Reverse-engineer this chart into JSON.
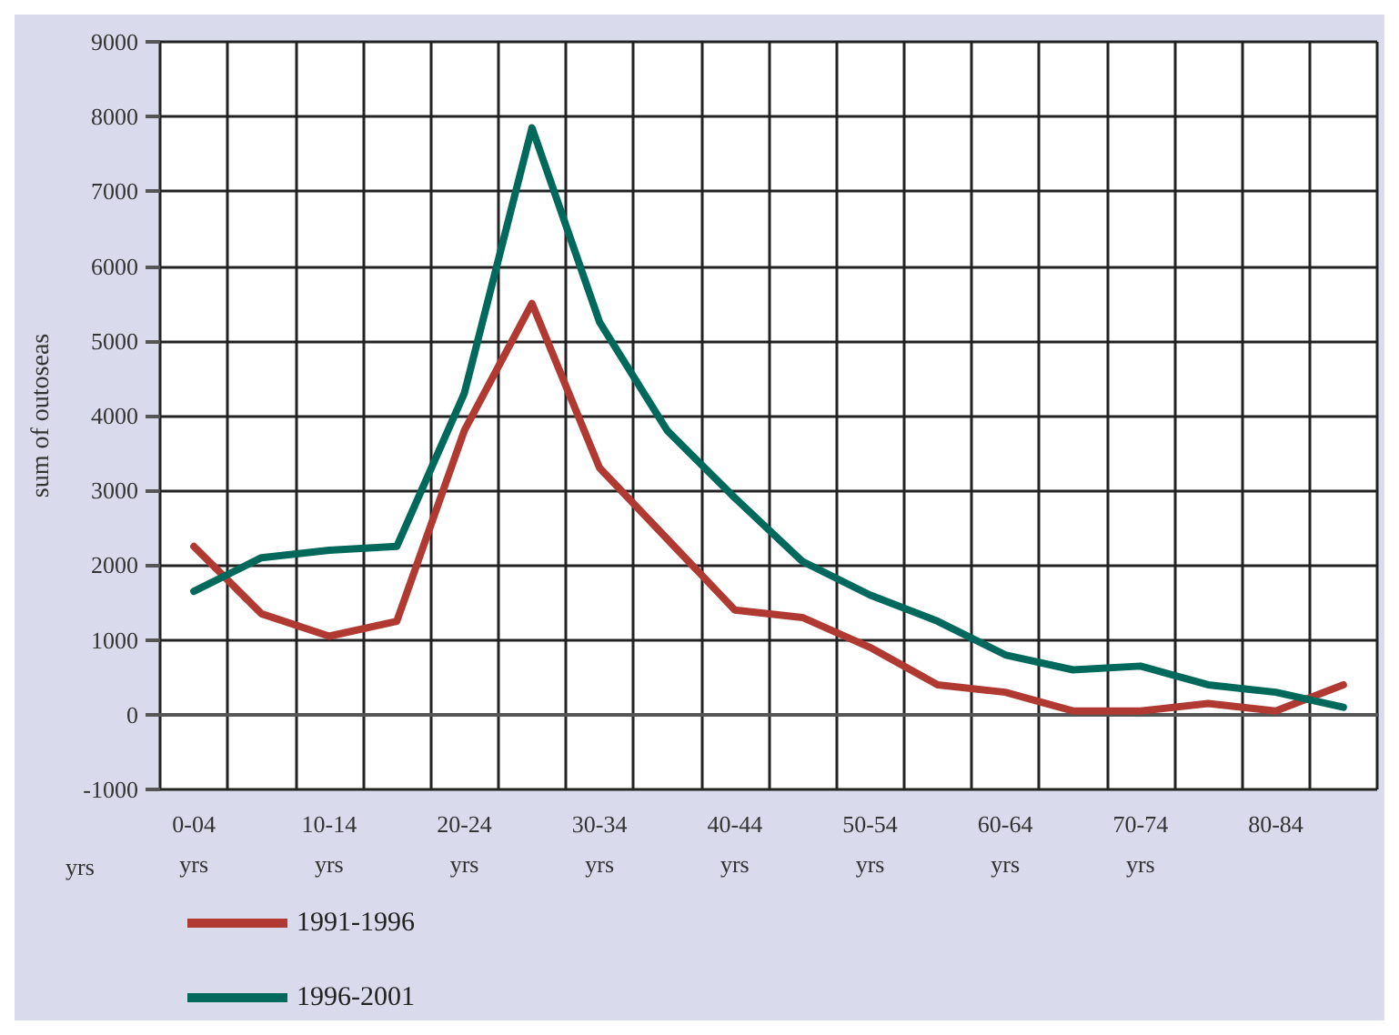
{
  "chart_data": {
    "type": "line",
    "ylabel": "sum of outoseas",
    "categories": [
      "0-04\nyrs",
      null,
      "10-14\nyrs",
      null,
      "20-24\nyrs",
      null,
      "30-34\nyrs",
      null,
      "40-44\nyrs",
      null,
      "50-54\nyrs",
      null,
      "60-64\nyrs",
      null,
      "70-74\nyrs",
      null,
      "80-84",
      null
    ],
    "series": [
      {
        "name": "1991-1996",
        "color": "#b03a32",
        "values": [
          2250,
          1350,
          1050,
          1250,
          3800,
          5500,
          3300,
          2350,
          1400,
          1300,
          900,
          400,
          300,
          50,
          50,
          150,
          50,
          400
        ]
      },
      {
        "name": "1996-2001",
        "color": "#00695c",
        "values": [
          1650,
          2100,
          2200,
          2250,
          4300,
          7850,
          5250,
          3800,
          2900,
          2050,
          1600,
          1250,
          800,
          600,
          650,
          400,
          300,
          100
        ]
      }
    ],
    "ylim": [
      -1000,
      9000
    ],
    "yticks": [
      -1000,
      0,
      1000,
      2000,
      3000,
      4000,
      5000,
      6000,
      7000,
      8000,
      9000
    ],
    "annotations": [
      "yrs"
    ],
    "grid": true,
    "legend": "bottom left",
    "marker": "none",
    "line_style": "solid"
  }
}
